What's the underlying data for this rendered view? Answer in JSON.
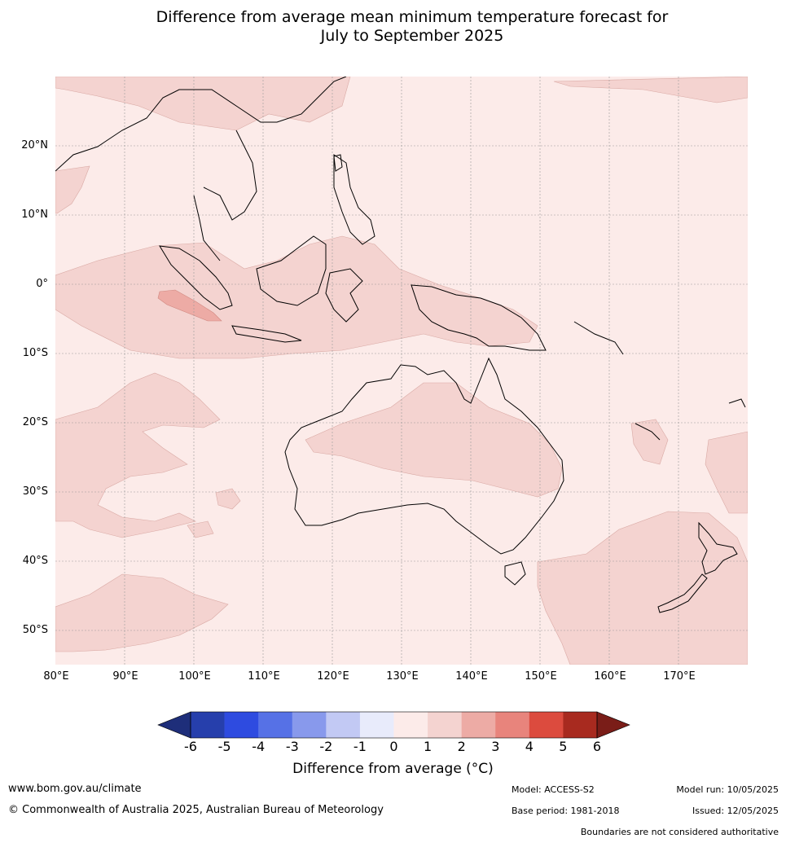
{
  "title_line1": "Difference from average mean minimum temperature forecast for",
  "title_line2": "July to September 2025",
  "map": {
    "lat_labels": [
      "20°N",
      "10°N",
      "0°",
      "10°S",
      "20°S",
      "30°S",
      "40°S",
      "50°S"
    ],
    "lon_labels": [
      "80°E",
      "90°E",
      "100°E",
      "110°E",
      "120°E",
      "130°E",
      "140°E",
      "150°E",
      "160°E",
      "170°E"
    ],
    "ocean_color": "#fcebe9",
    "grid_on": true,
    "regions": [
      {
        "name": "Central Australia",
        "range": "1 to 2"
      },
      {
        "name": "Indonesia equatorial band",
        "range": "1 to 2"
      },
      {
        "name": "Southwest of Sumatra",
        "range": "2 to 3"
      },
      {
        "name": "Southern Indian Ocean",
        "range": "1 to 2"
      },
      {
        "name": "Tasman Sea and New Zealand",
        "range": "1 to 2"
      },
      {
        "name": "South China",
        "range": "1 to 2"
      }
    ]
  },
  "colorbar": {
    "ticks": [
      "-6",
      "-5",
      "-4",
      "-3",
      "-2",
      "-1",
      "0",
      "1",
      "2",
      "3",
      "4",
      "5",
      "6"
    ],
    "colors": [
      "#263fac",
      "#2e4be0",
      "#5671e6",
      "#8899ec",
      "#c2c9f4",
      "#e8ebfb",
      "#fcebe9",
      "#f4d3d0",
      "#edaba5",
      "#e8847c",
      "#dc4b3e",
      "#a82a1f"
    ],
    "under_color": "#1e2e7a",
    "over_color": "#7a1d18",
    "label": "Difference from average (°C)"
  },
  "footer": {
    "url": "www.bom.gov.au/climate",
    "copyright": "© Commonwealth of Australia 2025, Australian Bureau of Meteorology",
    "model": "Model: ACCESS-S2",
    "model_run": "Model run: 10/05/2025",
    "base_period": "Base period: 1981-2018",
    "issued": "Issued: 12/05/2025",
    "boundaries": "Boundaries are not considered authoritative"
  }
}
